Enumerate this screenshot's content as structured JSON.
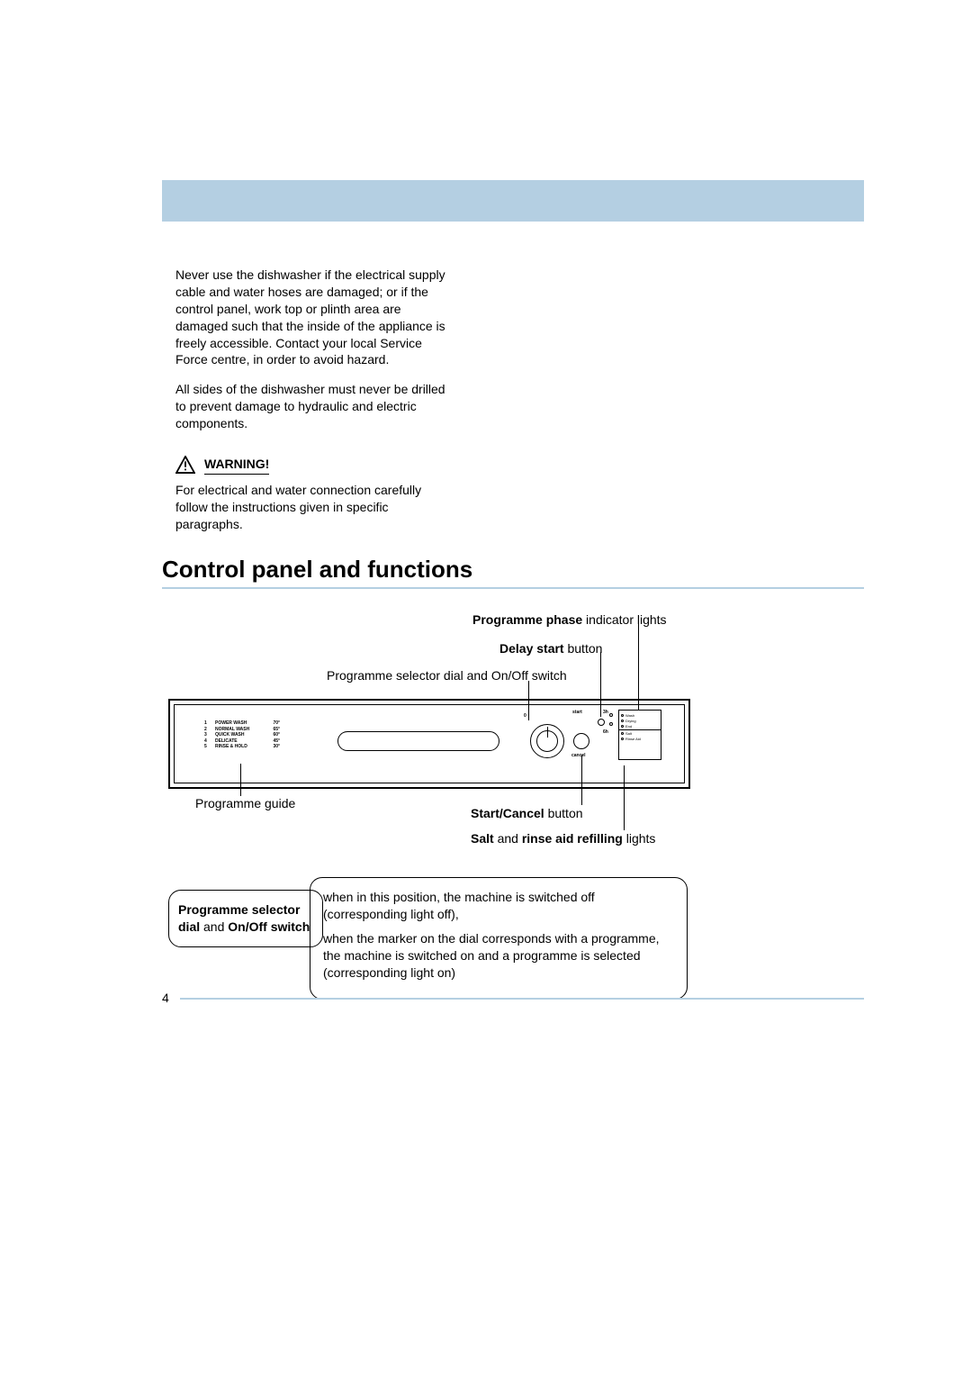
{
  "colors": {
    "band": "#b4cfe2"
  },
  "safety": {
    "p1": "Never use the dishwasher if the electrical supply cable and water hoses are damaged; or if the control panel, work top or plinth area are damaged such that the inside of the appliance is freely accessible. Contact your local Service Force centre, in order to avoid hazard.",
    "p2": "All sides of the dishwasher must never be drilled to prevent damage to hydraulic and electric components.",
    "warning_label": "WARNING!",
    "p3": "For electrical and water connection carefully follow the instructions given in specific paragraphs."
  },
  "section_title": "Control panel and functions",
  "callouts": {
    "phase_b": "Programme phase",
    "phase_r": " indicator lights",
    "delay_b": "Delay start",
    "delay_r": " button",
    "selector": "Programme selector dial and On/Off switch",
    "guide": "Programme guide",
    "start_b": "Start/Cancel",
    "start_r": " button",
    "salt_b1": "Salt",
    "salt_r1": " and ",
    "salt_b2": "rinse aid refilling",
    "salt_r2": " lights"
  },
  "panel": {
    "programmes": [
      {
        "n": "1",
        "nm": "POWER WASH",
        "t": "70°"
      },
      {
        "n": "2",
        "nm": "NORMAL WASH",
        "t": "65°"
      },
      {
        "n": "3",
        "nm": "QUICK WASH",
        "t": "60°"
      },
      {
        "n": "4",
        "nm": "DELICATE",
        "t": "45°"
      },
      {
        "n": "5",
        "nm": "RINSE & HOLD",
        "t": "30°"
      }
    ],
    "labels": {
      "start": "start",
      "cancel": "cancel",
      "three": "3h",
      "six": "6h"
    },
    "lights": [
      "Wash",
      "Drying",
      "End",
      "Salt",
      "Rinse Aid"
    ]
  },
  "notes": {
    "left_b1": "Programme selector dial",
    "left_r1": " and ",
    "left_b2": "On/Off switch",
    "right_p1": "when in this position, the machine is switched off (corresponding light off),",
    "right_p2": "when the marker on the dial corresponds with a programme, the machine is switched on and a programme is selected (corresponding light on)"
  },
  "page_number": "4"
}
